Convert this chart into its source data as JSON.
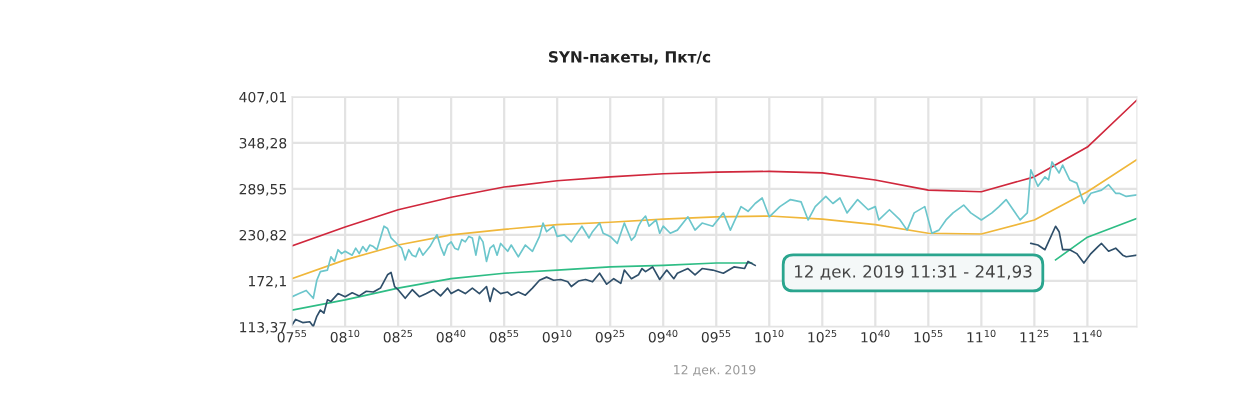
{
  "chart_data": {
    "type": "line",
    "title": "SYN-пакеты, Пкт/с",
    "xlabel": "12 дек. 2019",
    "xlim": [
      "2019-12-12T07:55",
      "2019-12-12T11:54"
    ],
    "ylim": [
      113.37,
      407.01
    ],
    "xticks": [
      {
        "value": "2019-12-12T07:55",
        "label": "07$^{55}$"
      },
      {
        "value": "2019-12-12T08:10",
        "label": "08$^{10}$"
      },
      {
        "value": "2019-12-12T08:25",
        "label": "08$^{25}$"
      },
      {
        "value": "2019-12-12T08:40",
        "label": "08$^{40}$"
      },
      {
        "value": "2019-12-12T08:55",
        "label": "08$^{55}$"
      },
      {
        "value": "2019-12-12T09:10",
        "label": "09$^{10}$"
      },
      {
        "value": "2019-12-12T09:25",
        "label": "09$^{25}$"
      },
      {
        "value": "2019-12-12T09:40",
        "label": "09$^{40}$"
      },
      {
        "value": "2019-12-12T09:55",
        "label": "09$^{55}$"
      },
      {
        "value": "2019-12-12T10:10",
        "label": "10$^{10}$"
      },
      {
        "value": "2019-12-12T10:25",
        "label": "10$^{25}$"
      },
      {
        "value": "2019-12-12T10:40",
        "label": "10$^{40}$"
      },
      {
        "value": "2019-12-12T10:55",
        "label": "10$^{55}$"
      },
      {
        "value": "2019-12-12T11:10",
        "label": "11$^{10}$"
      },
      {
        "value": "2019-12-12T11:25",
        "label": "11$^{25}$"
      },
      {
        "value": "2019-12-12T11:40",
        "label": "11$^{40}$"
      }
    ],
    "yticks": [
      {
        "value": 113.37,
        "label": "113,37"
      },
      {
        "value": 172.1,
        "label": "172,1"
      },
      {
        "value": 230.82,
        "label": "230,82"
      },
      {
        "value": 289.55,
        "label": "289,55"
      },
      {
        "value": 348.28,
        "label": "348,28"
      },
      {
        "value": 407.01,
        "label": "407,01"
      }
    ],
    "grid": true,
    "marker": "none",
    "line_style": "solid",
    "series": [
      {
        "color": "#d0273c",
        "x": [
          "2019-12-12T07:55",
          "2019-12-12T08:10",
          "2019-12-12T08:25",
          "2019-12-12T08:40",
          "2019-12-12T08:55",
          "2019-12-12T09:10",
          "2019-12-12T09:25",
          "2019-12-12T09:40",
          "2019-12-12T09:55",
          "2019-12-12T10:10",
          "2019-12-12T10:25",
          "2019-12-12T10:40",
          "2019-12-12T10:55",
          "2019-12-12T11:10",
          "2019-12-12T11:25",
          "2019-12-12T11:40",
          "2019-12-12T11:54"
        ],
        "values": [
          217,
          241,
          263,
          279,
          292,
          300,
          305,
          309,
          311,
          312,
          310,
          301,
          288,
          286,
          305,
          343,
          403
        ]
      },
      {
        "color": "#f0b73a",
        "x": [
          "2019-12-12T07:55",
          "2019-12-12T08:10",
          "2019-12-12T08:25",
          "2019-12-12T08:40",
          "2019-12-12T08:55",
          "2019-12-12T09:10",
          "2019-12-12T09:25",
          "2019-12-12T09:40",
          "2019-12-12T09:55",
          "2019-12-12T10:10",
          "2019-12-12T10:25",
          "2019-12-12T10:40",
          "2019-12-12T10:55",
          "2019-12-12T11:10",
          "2019-12-12T11:25",
          "2019-12-12T11:40",
          "2019-12-12T11:54"
        ],
        "values": [
          175,
          199,
          218,
          231,
          238,
          244,
          247,
          251,
          254,
          255,
          251,
          244,
          233,
          232,
          250,
          286,
          327
        ]
      },
      {
        "color": "#2ebd85",
        "x": [
          "2019-12-12T07:55",
          "2019-12-12T08:10",
          "2019-12-12T08:25",
          "2019-12-12T08:40",
          "2019-12-12T08:55",
          "2019-12-12T09:10",
          "2019-12-12T09:25",
          "2019-12-12T09:40",
          "2019-12-12T09:55",
          "2019-12-12T10:05",
          "2019-12-12T10:48",
          "2019-12-12T11:31",
          "2019-12-12T11:40",
          "2019-12-12T11:54"
        ],
        "values": [
          135,
          148,
          163,
          175,
          182,
          186,
          190,
          192,
          195,
          195,
          null,
          199,
          228,
          252
        ]
      },
      {
        "color": "#6cc6cc",
        "x": [
          "2019-12-12T07:55",
          "2019-12-12T07:57",
          "2019-12-12T07:59",
          "2019-12-12T08:01",
          "2019-12-12T08:02",
          "2019-12-12T08:03",
          "2019-12-12T08:05",
          "2019-12-12T08:06",
          "2019-12-12T08:07",
          "2019-12-12T08:08",
          "2019-12-12T08:09",
          "2019-12-12T08:10",
          "2019-12-12T08:12",
          "2019-12-12T08:13",
          "2019-12-12T08:14",
          "2019-12-12T08:15",
          "2019-12-12T08:16",
          "2019-12-12T08:17",
          "2019-12-12T08:18",
          "2019-12-12T08:19",
          "2019-12-12T08:21",
          "2019-12-12T08:22",
          "2019-12-12T08:23",
          "2019-12-12T08:25",
          "2019-12-12T08:26",
          "2019-12-12T08:27",
          "2019-12-12T08:28",
          "2019-12-12T08:29",
          "2019-12-12T08:30",
          "2019-12-12T08:31",
          "2019-12-12T08:32",
          "2019-12-12T08:34",
          "2019-12-12T08:35",
          "2019-12-12T08:36",
          "2019-12-12T08:37",
          "2019-12-12T08:38",
          "2019-12-12T08:39",
          "2019-12-12T08:40",
          "2019-12-12T08:41",
          "2019-12-12T08:42",
          "2019-12-12T08:43",
          "2019-12-12T08:44",
          "2019-12-12T08:45",
          "2019-12-12T08:46",
          "2019-12-12T08:47",
          "2019-12-12T08:48",
          "2019-12-12T08:49",
          "2019-12-12T08:50",
          "2019-12-12T08:51",
          "2019-12-12T08:52",
          "2019-12-12T08:53",
          "2019-12-12T08:54",
          "2019-12-12T08:56",
          "2019-12-12T08:57",
          "2019-12-12T08:59",
          "2019-12-12T09:01",
          "2019-12-12T09:03",
          "2019-12-12T09:05",
          "2019-12-12T09:06",
          "2019-12-12T09:07",
          "2019-12-12T09:09",
          "2019-12-12T09:10",
          "2019-12-12T09:12",
          "2019-12-12T09:14",
          "2019-12-12T09:15",
          "2019-12-12T09:17",
          "2019-12-12T09:19",
          "2019-12-12T09:20",
          "2019-12-12T09:22",
          "2019-12-12T09:23",
          "2019-12-12T09:25",
          "2019-12-12T09:27",
          "2019-12-12T09:29",
          "2019-12-12T09:31",
          "2019-12-12T09:32",
          "2019-12-12T09:33",
          "2019-12-12T09:34",
          "2019-12-12T09:35",
          "2019-12-12T09:36",
          "2019-12-12T09:38",
          "2019-12-12T09:39",
          "2019-12-12T09:40",
          "2019-12-12T09:42",
          "2019-12-12T09:44",
          "2019-12-12T09:47",
          "2019-12-12T09:49",
          "2019-12-12T09:51",
          "2019-12-12T09:54",
          "2019-12-12T09:57",
          "2019-12-12T09:59",
          "2019-12-12T10:02",
          "2019-12-12T10:04",
          "2019-12-12T10:06",
          "2019-12-12T10:08",
          "2019-12-12T10:10",
          "2019-12-12T10:13",
          "2019-12-12T10:16",
          "2019-12-12T10:19",
          "2019-12-12T10:21",
          "2019-12-12T10:23",
          "2019-12-12T10:26",
          "2019-12-12T10:28",
          "2019-12-12T10:30",
          "2019-12-12T10:32",
          "2019-12-12T10:35",
          "2019-12-12T10:38",
          "2019-12-12T10:40",
          "2019-12-12T10:41",
          "2019-12-12T10:44",
          "2019-12-12T10:47",
          "2019-12-12T10:49",
          "2019-12-12T10:51",
          "2019-12-12T10:54",
          "2019-12-12T10:56",
          "2019-12-12T10:58",
          "2019-12-12T11:00",
          "2019-12-12T11:02",
          "2019-12-12T11:05",
          "2019-12-12T11:07",
          "2019-12-12T11:10",
          "2019-12-12T11:13",
          "2019-12-12T11:15",
          "2019-12-12T11:17",
          "2019-12-12T11:19",
          "2019-12-12T11:21",
          "2019-12-12T11:23",
          "2019-12-12T11:24",
          "2019-12-12T11:26",
          "2019-12-12T11:28",
          "2019-12-12T11:29",
          "2019-12-12T11:30",
          "2019-12-12T11:32",
          "2019-12-12T11:33",
          "2019-12-12T11:35",
          "2019-12-12T11:37",
          "2019-12-12T11:39",
          "2019-12-12T11:41",
          "2019-12-12T11:44",
          "2019-12-12T11:46",
          "2019-12-12T11:48",
          "2019-12-12T11:49",
          "2019-12-12T11:51",
          "2019-12-12T11:54"
        ],
        "values": [
          152,
          156,
          160,
          150,
          173,
          184,
          186,
          203,
          197,
          212,
          207,
          210,
          205,
          214,
          207,
          216,
          210,
          218,
          216,
          212,
          242,
          239,
          227,
          218,
          214,
          199,
          212,
          205,
          203,
          214,
          205,
          216,
          224,
          231,
          216,
          205,
          218,
          222,
          214,
          212,
          225,
          222,
          229,
          227,
          205,
          229,
          222,
          197,
          214,
          218,
          205,
          220,
          210,
          218,
          203,
          218,
          210,
          229,
          246,
          235,
          242,
          229,
          231,
          222,
          229,
          242,
          227,
          235,
          246,
          233,
          229,
          220,
          246,
          224,
          229,
          242,
          250,
          255,
          242,
          250,
          233,
          242,
          233,
          237,
          254,
          237,
          246,
          242,
          259,
          237,
          267,
          261,
          271,
          278,
          254,
          267,
          276,
          273,
          250,
          267,
          280,
          271,
          278,
          259,
          276,
          263,
          267,
          250,
          263,
          250,
          237,
          259,
          267,
          233,
          237,
          250,
          259,
          269,
          259,
          250,
          259,
          267,
          276,
          263,
          250,
          259,
          314,
          293,
          305,
          301,
          324,
          310,
          320,
          301,
          297,
          271,
          284,
          288,
          295,
          284,
          284,
          280,
          282
        ]
      },
      {
        "color": "#2f4f6a",
        "x": [
          "2019-12-12T07:55",
          "2019-12-12T07:56",
          "2019-12-12T07:58",
          "2019-12-12T08:00",
          "2019-12-12T08:01",
          "2019-12-12T08:02",
          "2019-12-12T08:03",
          "2019-12-12T08:04",
          "2019-12-12T08:05",
          "2019-12-12T08:06",
          "2019-12-12T08:08",
          "2019-12-12T08:10",
          "2019-12-12T08:12",
          "2019-12-12T08:14",
          "2019-12-12T08:16",
          "2019-12-12T08:18",
          "2019-12-12T08:20",
          "2019-12-12T08:22",
          "2019-12-12T08:23",
          "2019-12-12T08:24",
          "2019-12-12T08:25",
          "2019-12-12T08:27",
          "2019-12-12T08:29",
          "2019-12-12T08:31",
          "2019-12-12T08:33",
          "2019-12-12T08:35",
          "2019-12-12T08:37",
          "2019-12-12T08:39",
          "2019-12-12T08:40",
          "2019-12-12T08:42",
          "2019-12-12T08:44",
          "2019-12-12T08:46",
          "2019-12-12T08:48",
          "2019-12-12T08:50",
          "2019-12-12T08:51",
          "2019-12-12T08:52",
          "2019-12-12T08:54",
          "2019-12-12T08:56",
          "2019-12-12T08:57",
          "2019-12-12T08:59",
          "2019-12-12T09:01",
          "2019-12-12T09:03",
          "2019-12-12T09:05",
          "2019-12-12T09:07",
          "2019-12-12T09:09",
          "2019-12-12T09:11",
          "2019-12-12T09:13",
          "2019-12-12T09:14",
          "2019-12-12T09:16",
          "2019-12-12T09:18",
          "2019-12-12T09:20",
          "2019-12-12T09:22",
          "2019-12-12T09:24",
          "2019-12-12T09:26",
          "2019-12-12T09:28",
          "2019-12-12T09:29",
          "2019-12-12T09:31",
          "2019-12-12T09:33",
          "2019-12-12T09:34",
          "2019-12-12T09:35",
          "2019-12-12T09:37",
          "2019-12-12T09:39",
          "2019-12-12T09:41",
          "2019-12-12T09:43",
          "2019-12-12T09:44",
          "2019-12-12T09:47",
          "2019-12-12T09:49",
          "2019-12-12T09:51",
          "2019-12-12T09:54",
          "2019-12-12T09:57",
          "2019-12-12T10:00",
          "2019-12-12T10:03",
          "2019-12-12T10:04",
          "2019-12-12T10:06",
          "2019-12-12T10:48",
          "2019-12-12T11:24",
          "2019-12-12T11:26",
          "2019-12-12T11:28",
          "2019-12-12T11:31",
          "2019-12-12T11:32",
          "2019-12-12T11:33",
          "2019-12-12T11:35",
          "2019-12-12T11:37",
          "2019-12-12T11:39",
          "2019-12-12T11:41",
          "2019-12-12T11:43",
          "2019-12-12T11:44",
          "2019-12-12T11:46",
          "2019-12-12T11:48",
          "2019-12-12T11:50",
          "2019-12-12T11:51",
          "2019-12-12T11:54"
        ],
        "values": [
          116,
          123,
          119,
          120,
          114,
          127,
          135,
          131,
          148,
          146,
          156,
          152,
          157,
          153,
          159,
          158,
          163,
          180,
          183,
          165,
          161,
          150,
          161,
          152,
          156,
          161,
          153,
          163,
          156,
          161,
          156,
          163,
          156,
          165,
          146,
          163,
          156,
          158,
          154,
          158,
          154,
          163,
          173,
          177,
          173,
          174,
          171,
          165,
          172,
          174,
          171,
          182,
          168,
          175,
          169,
          186,
          175,
          180,
          188,
          184,
          190,
          174,
          186,
          175,
          182,
          188,
          180,
          188,
          186,
          182,
          190,
          188,
          197,
          192,
          null,
          220,
          218,
          212,
          241.93,
          235,
          212,
          212,
          207,
          195,
          207,
          216,
          220,
          210,
          214,
          205,
          203,
          205
        ]
      }
    ],
    "annotations": [
      "12 дек. 2019 11:31 - 241,93"
    ]
  }
}
